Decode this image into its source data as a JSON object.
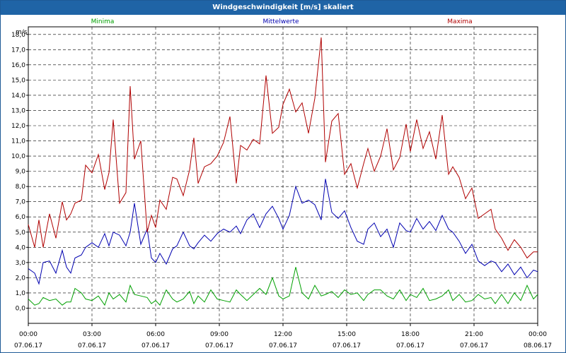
{
  "window": {
    "title": "Windgeschwindigkeit [m/s] skaliert"
  },
  "chart_data": {
    "type": "line",
    "title": "Windgeschwindigkeit [m/s] skaliert",
    "ylabel": "m/s",
    "ylim": [
      -1.0,
      18.5
    ],
    "xlim": [
      0,
      24
    ],
    "grid": true,
    "legend_position": "top",
    "y_ticks": [
      "18,0",
      "17,0",
      "16,0",
      "15,0",
      "14,0",
      "13,0",
      "12,0",
      "11,0",
      "10,0",
      "9,0",
      "8,0",
      "7,0",
      "6,0",
      "5,0",
      "4,0",
      "3,0",
      "2,0",
      "1,0",
      "0,0"
    ],
    "x_ticks": [
      {
        "time": "00:00",
        "date": "07.06.17"
      },
      {
        "time": "03:00",
        "date": "07.06.17"
      },
      {
        "time": "06:00",
        "date": "07.06.17"
      },
      {
        "time": "09:00",
        "date": "07.06.17"
      },
      {
        "time": "12:00",
        "date": "07.06.17"
      },
      {
        "time": "15:00",
        "date": "07.06.17"
      },
      {
        "time": "18:00",
        "date": "07.06.17"
      },
      {
        "time": "21:00",
        "date": "07.06.17"
      },
      {
        "time": "00:00",
        "date": "08.06.17"
      }
    ],
    "series": [
      {
        "name": "Minima",
        "color": "#00a000",
        "x": [
          0.0,
          0.3,
          0.5,
          0.7,
          1.0,
          1.3,
          1.6,
          1.8,
          2.0,
          2.2,
          2.5,
          2.7,
          3.0,
          3.3,
          3.6,
          3.8,
          4.0,
          4.3,
          4.6,
          4.8,
          5.0,
          5.3,
          5.6,
          5.8,
          6.0,
          6.2,
          6.5,
          6.8,
          7.0,
          7.3,
          7.6,
          7.8,
          8.0,
          8.3,
          8.6,
          8.9,
          9.2,
          9.5,
          9.8,
          10.0,
          10.3,
          10.6,
          10.9,
          11.2,
          11.5,
          11.8,
          12.0,
          12.3,
          12.6,
          12.9,
          13.2,
          13.5,
          13.8,
          14.0,
          14.3,
          14.6,
          14.9,
          15.2,
          15.5,
          15.8,
          16.0,
          16.3,
          16.6,
          16.9,
          17.2,
          17.5,
          17.8,
          18.0,
          18.3,
          18.6,
          18.9,
          19.2,
          19.5,
          19.8,
          20.0,
          20.3,
          20.6,
          20.9,
          21.2,
          21.5,
          21.8,
          22.0,
          22.3,
          22.6,
          22.9,
          23.2,
          23.5,
          23.8,
          24.0
        ],
        "y": [
          0.6,
          0.2,
          0.3,
          0.7,
          0.5,
          0.6,
          0.2,
          0.4,
          0.4,
          1.3,
          1.0,
          0.6,
          0.5,
          0.8,
          0.2,
          1.0,
          0.6,
          0.9,
          0.4,
          1.5,
          0.9,
          0.8,
          0.7,
          0.3,
          0.5,
          0.2,
          1.2,
          0.6,
          0.4,
          0.6,
          1.1,
          0.3,
          0.8,
          0.4,
          1.2,
          0.6,
          0.5,
          0.4,
          1.2,
          0.9,
          0.5,
          0.9,
          1.3,
          0.9,
          2.0,
          0.8,
          0.6,
          0.8,
          2.7,
          1.0,
          0.6,
          1.5,
          0.8,
          0.9,
          1.1,
          0.7,
          1.2,
          0.9,
          1.0,
          0.5,
          0.9,
          1.2,
          1.2,
          0.8,
          0.6,
          1.2,
          0.5,
          0.9,
          0.7,
          1.3,
          0.5,
          0.6,
          0.8,
          1.2,
          0.5,
          0.9,
          0.4,
          0.5,
          0.9,
          0.6,
          0.7,
          0.3,
          0.9,
          0.3,
          1.0,
          0.5,
          1.5,
          0.6,
          0.9
        ]
      },
      {
        "name": "Mittelwerte",
        "color": "#0000b0",
        "x": [
          0.0,
          0.3,
          0.5,
          0.7,
          1.0,
          1.3,
          1.6,
          1.8,
          2.0,
          2.2,
          2.5,
          2.7,
          3.0,
          3.3,
          3.6,
          3.8,
          4.0,
          4.3,
          4.6,
          4.8,
          5.0,
          5.3,
          5.6,
          5.8,
          6.0,
          6.2,
          6.5,
          6.8,
          7.0,
          7.3,
          7.6,
          7.8,
          8.0,
          8.3,
          8.6,
          8.9,
          9.2,
          9.5,
          9.8,
          10.0,
          10.3,
          10.6,
          10.9,
          11.2,
          11.5,
          11.8,
          12.0,
          12.3,
          12.6,
          12.9,
          13.2,
          13.5,
          13.8,
          14.0,
          14.3,
          14.6,
          14.9,
          15.2,
          15.5,
          15.8,
          16.0,
          16.3,
          16.6,
          16.9,
          17.2,
          17.5,
          17.8,
          18.0,
          18.3,
          18.6,
          18.9,
          19.2,
          19.5,
          19.8,
          20.0,
          20.3,
          20.6,
          20.9,
          21.2,
          21.5,
          21.8,
          22.0,
          22.3,
          22.6,
          22.9,
          23.2,
          23.5,
          23.8,
          24.0
        ],
        "y": [
          2.6,
          2.3,
          1.6,
          3.0,
          3.1,
          2.3,
          3.8,
          2.7,
          2.3,
          3.3,
          3.5,
          4.0,
          4.3,
          4.0,
          4.9,
          4.1,
          5.0,
          4.8,
          4.1,
          5.0,
          6.9,
          4.2,
          5.2,
          3.3,
          3.0,
          3.6,
          2.9,
          3.9,
          4.1,
          5.0,
          4.1,
          3.9,
          4.3,
          4.8,
          4.4,
          4.9,
          5.2,
          5.0,
          5.4,
          4.9,
          5.8,
          6.2,
          5.3,
          6.2,
          6.7,
          5.9,
          5.2,
          6.1,
          8.0,
          6.9,
          7.1,
          6.8,
          5.8,
          8.5,
          6.3,
          5.9,
          6.4,
          5.3,
          4.4,
          4.2,
          5.2,
          5.6,
          4.7,
          5.2,
          4.0,
          5.6,
          5.1,
          5.0,
          5.9,
          5.2,
          5.7,
          5.1,
          6.1,
          5.2,
          5.0,
          4.4,
          3.6,
          4.2,
          3.1,
          2.8,
          3.1,
          3.0,
          2.4,
          2.9,
          2.2,
          2.7,
          2.0,
          2.5,
          2.4
        ]
      },
      {
        "name": "Maxima",
        "color": "#b00000",
        "x": [
          0.0,
          0.3,
          0.5,
          0.7,
          1.0,
          1.3,
          1.6,
          1.8,
          2.0,
          2.2,
          2.5,
          2.7,
          3.0,
          3.3,
          3.6,
          3.8,
          4.0,
          4.3,
          4.6,
          4.8,
          5.0,
          5.3,
          5.6,
          5.8,
          6.0,
          6.2,
          6.5,
          6.8,
          7.0,
          7.3,
          7.6,
          7.8,
          8.0,
          8.3,
          8.6,
          8.9,
          9.2,
          9.5,
          9.8,
          10.0,
          10.3,
          10.6,
          10.9,
          11.2,
          11.5,
          11.8,
          12.0,
          12.3,
          12.6,
          12.9,
          13.2,
          13.5,
          13.8,
          14.0,
          14.3,
          14.6,
          14.9,
          15.2,
          15.5,
          15.8,
          16.0,
          16.3,
          16.6,
          16.9,
          17.2,
          17.5,
          17.8,
          18.0,
          18.3,
          18.6,
          18.9,
          19.2,
          19.5,
          19.8,
          20.0,
          20.3,
          20.6,
          20.9,
          21.2,
          21.5,
          21.8,
          22.0,
          22.3,
          22.6,
          22.9,
          23.2,
          23.5,
          23.8,
          24.0
        ],
        "y": [
          5.5,
          4.0,
          5.8,
          4.0,
          6.2,
          4.6,
          7.0,
          5.8,
          6.2,
          6.9,
          7.1,
          9.4,
          8.9,
          10.1,
          7.8,
          8.9,
          12.4,
          6.9,
          7.6,
          14.6,
          9.8,
          11.0,
          5.0,
          6.1,
          5.3,
          7.1,
          6.5,
          8.6,
          8.5,
          7.4,
          9.1,
          11.2,
          8.2,
          9.3,
          9.5,
          10.0,
          10.9,
          12.6,
          8.2,
          10.7,
          10.4,
          11.1,
          10.8,
          15.3,
          11.5,
          11.9,
          13.4,
          14.4,
          12.9,
          13.5,
          11.5,
          13.8,
          17.8,
          9.6,
          12.3,
          12.8,
          8.8,
          9.5,
          7.9,
          9.5,
          10.5,
          9.0,
          10.0,
          11.8,
          9.1,
          9.9,
          12.1,
          10.3,
          12.4,
          10.5,
          11.6,
          9.8,
          12.7,
          8.8,
          9.3,
          8.6,
          7.2,
          7.9,
          5.9,
          6.2,
          6.5,
          5.2,
          4.6,
          3.8,
          4.5,
          4.0,
          3.3,
          3.7,
          3.7
        ]
      }
    ]
  }
}
